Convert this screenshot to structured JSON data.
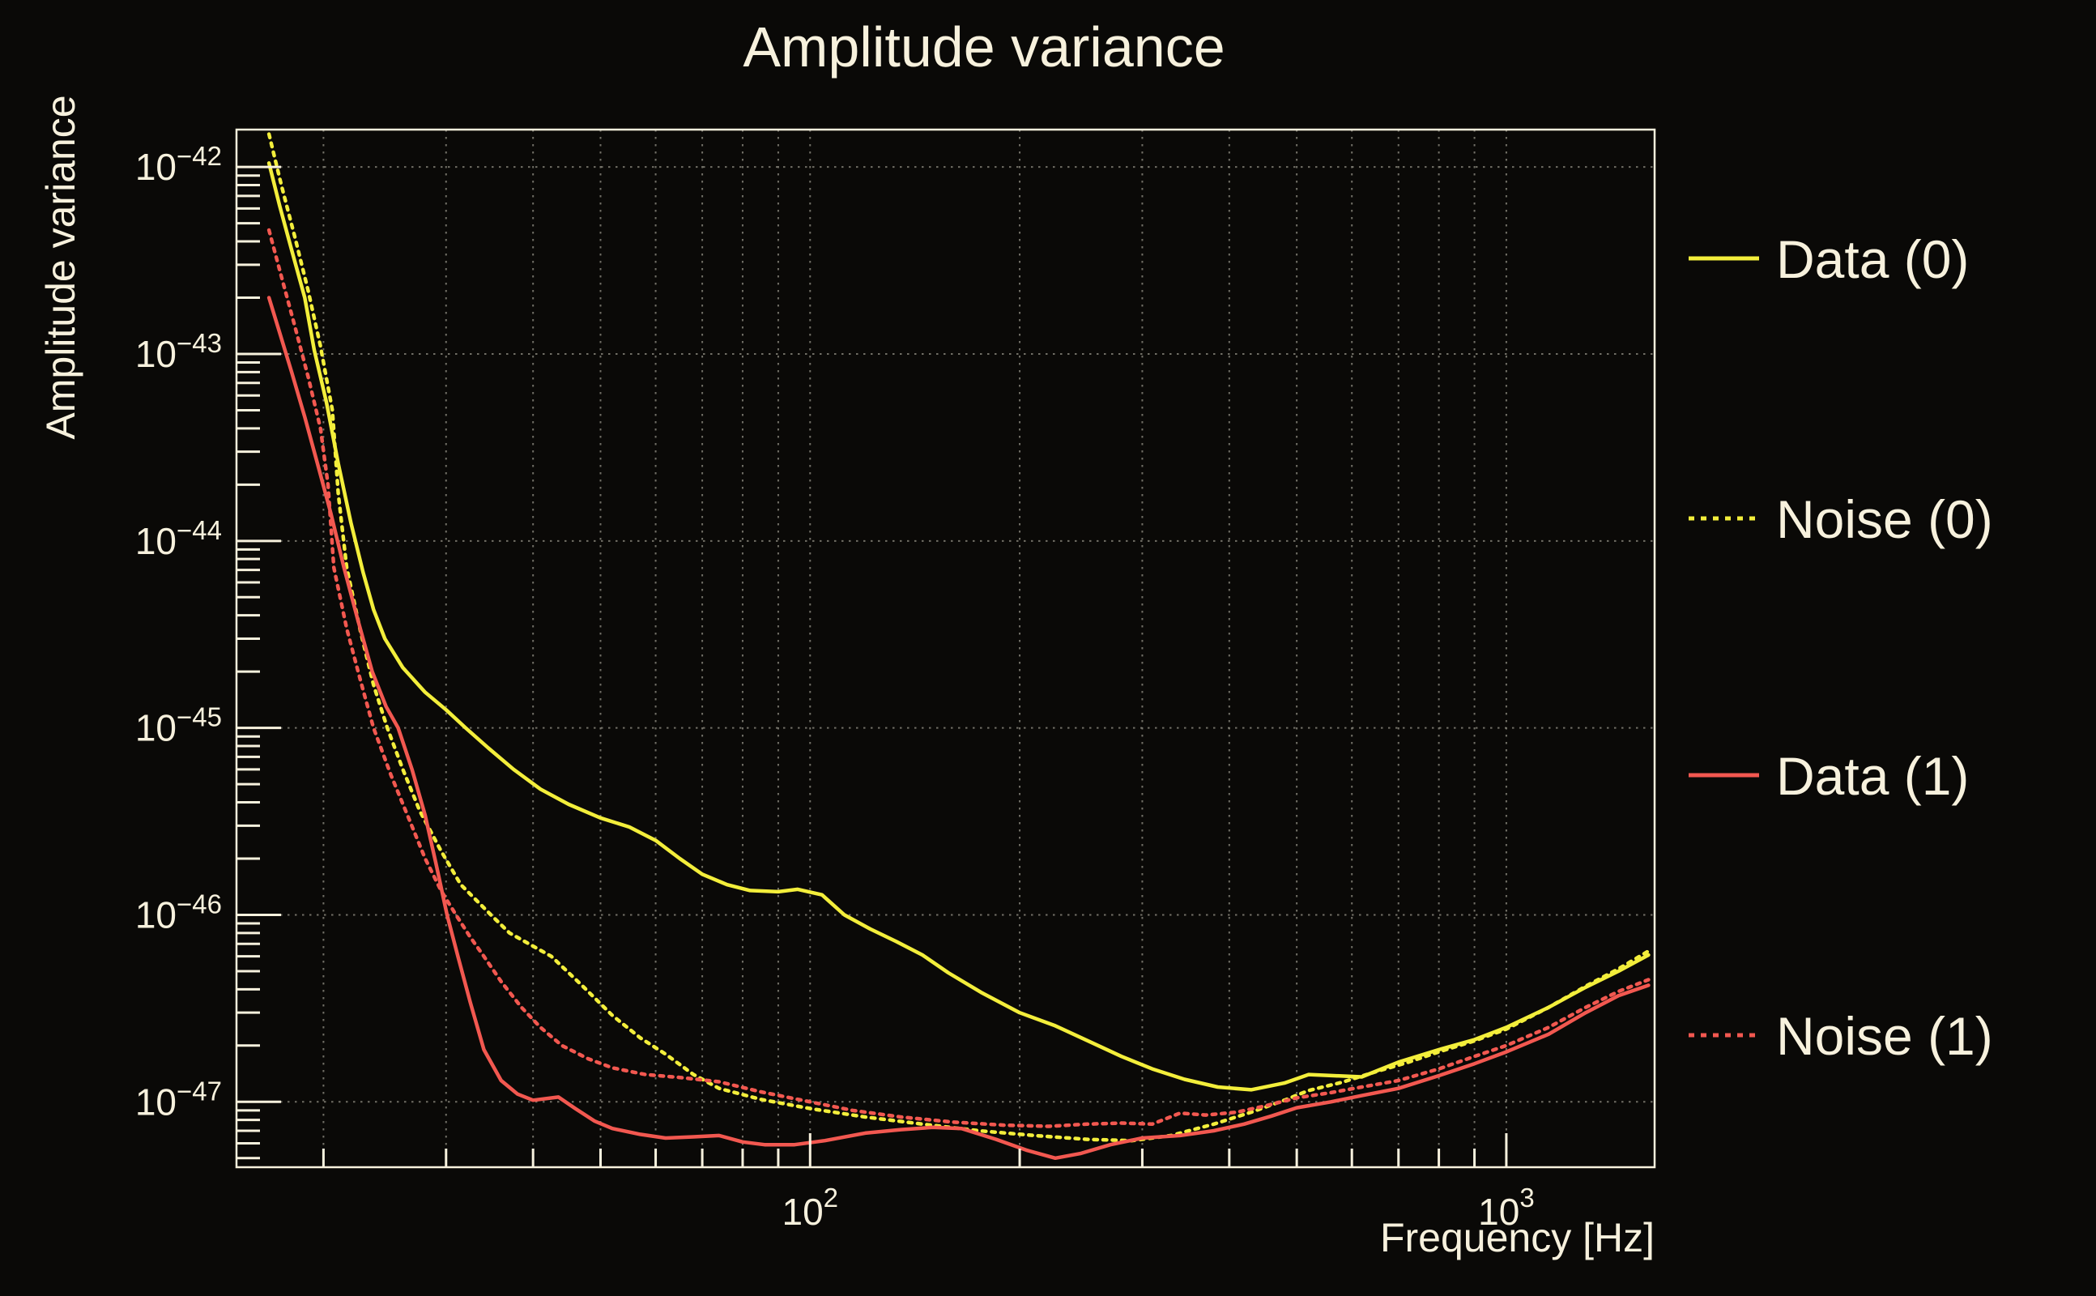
{
  "colors": {
    "background": "#0a0907",
    "foreground": "#f7f1dd",
    "grid": "#8b897e",
    "yellow": "#f3ee3b",
    "red": "#f25850"
  },
  "chart_data": {
    "type": "line",
    "title": "Amplitude variance",
    "xlabel": "Frequency [Hz]",
    "ylabel": "Amplitude variance",
    "x_scale": "log",
    "y_scale": "log",
    "xlim": [
      15.0,
      1633
    ],
    "ylim": [
      4.47e-48,
      1.585e-42
    ],
    "grid": "dotted gray lines at log decades (y) and log minor/major positions up to 1000 Hz (x)",
    "legend_position": "right-outside",
    "x_tick_labels": [
      {
        "value": 100,
        "base": "10",
        "exponent": "2"
      },
      {
        "value": 1000,
        "base": "10",
        "exponent": "3"
      }
    ],
    "y_tick_labels": [
      {
        "value": 1e-42,
        "base": "10",
        "exponent": "−42"
      },
      {
        "value": 1e-43,
        "base": "10",
        "exponent": "−43"
      },
      {
        "value": 1e-44,
        "base": "10",
        "exponent": "−44"
      },
      {
        "value": 1e-45,
        "base": "10",
        "exponent": "−45"
      },
      {
        "value": 1e-46,
        "base": "10",
        "exponent": "−46"
      },
      {
        "value": 1e-47,
        "base": "10",
        "exponent": "−47"
      }
    ],
    "series": [
      {
        "name": "Data (0)",
        "color": "#f3ee3b",
        "style": "solid",
        "points": [
          [
            16.7,
            1.05e-42
          ],
          [
            17.3,
            6.2e-43
          ],
          [
            18,
            3.6e-43
          ],
          [
            18.8,
            2e-43
          ],
          [
            19.4,
            1.05e-43
          ],
          [
            20.2,
            5.5e-44
          ],
          [
            21,
            2.6e-44
          ],
          [
            21.9,
            1.25e-44
          ],
          [
            22.8,
            6.8e-45
          ],
          [
            23.6,
            4.3e-45
          ],
          [
            24.5,
            3e-45
          ],
          [
            26,
            2.1e-45
          ],
          [
            28,
            1.55e-45
          ],
          [
            30,
            1.25e-45
          ],
          [
            32,
            1e-45
          ],
          [
            34.5,
            7.8e-46
          ],
          [
            37.5,
            6e-46
          ],
          [
            41,
            4.7e-46
          ],
          [
            45,
            3.9e-46
          ],
          [
            50,
            3.3e-46
          ],
          [
            55,
            2.95e-46
          ],
          [
            60,
            2.5e-46
          ],
          [
            65,
            2e-46
          ],
          [
            70,
            1.65e-46
          ],
          [
            76,
            1.45e-46
          ],
          [
            82,
            1.35e-46
          ],
          [
            90,
            1.33e-46
          ],
          [
            96,
            1.37e-46
          ],
          [
            104,
            1.28e-46
          ],
          [
            112,
            1e-46
          ],
          [
            122,
            8.4e-47
          ],
          [
            133,
            7.2e-47
          ],
          [
            145,
            6.1e-47
          ],
          [
            158,
            4.9e-47
          ],
          [
            176,
            3.85e-47
          ],
          [
            200,
            3e-47
          ],
          [
            225,
            2.55e-47
          ],
          [
            252,
            2.1e-47
          ],
          [
            280,
            1.75e-47
          ],
          [
            310,
            1.5e-47
          ],
          [
            345,
            1.32e-47
          ],
          [
            385,
            1.2e-47
          ],
          [
            430,
            1.16e-47
          ],
          [
            480,
            1.26e-47
          ],
          [
            520,
            1.4e-47
          ],
          [
            565,
            1.38e-47
          ],
          [
            620,
            1.36e-47
          ],
          [
            700,
            1.63e-47
          ],
          [
            800,
            1.9e-47
          ],
          [
            900,
            2.15e-47
          ],
          [
            1000,
            2.5e-47
          ],
          [
            1150,
            3.2e-47
          ],
          [
            1300,
            4.1e-47
          ],
          [
            1450,
            5e-47
          ],
          [
            1600,
            6.1e-47
          ]
        ]
      },
      {
        "name": "Noise (0)",
        "color": "#f3ee3b",
        "style": "dotted",
        "points": [
          [
            16.7,
            1.5e-42
          ],
          [
            17.4,
            8e-43
          ],
          [
            18.2,
            4.2e-43
          ],
          [
            19,
            2.2e-43
          ],
          [
            19.8,
            1.1e-43
          ],
          [
            20.6,
            5e-44
          ],
          [
            21.0,
            1.8e-44
          ],
          [
            21.6,
            7.2e-45
          ],
          [
            22.6,
            3.3e-45
          ],
          [
            23.6,
            1.7e-45
          ],
          [
            24.7,
            1e-45
          ],
          [
            26,
            6e-46
          ],
          [
            27.5,
            3.6e-46
          ],
          [
            29.5,
            2.2e-46
          ],
          [
            31.5,
            1.45e-46
          ],
          [
            34.8,
            1e-46
          ],
          [
            37,
            8e-47
          ],
          [
            40,
            6.8e-47
          ],
          [
            42.5,
            6e-47
          ],
          [
            47,
            4.2e-47
          ],
          [
            52,
            2.9e-47
          ],
          [
            57,
            2.2e-47
          ],
          [
            62,
            1.8e-47
          ],
          [
            68,
            1.4e-47
          ],
          [
            74,
            1.18e-47
          ],
          [
            85,
            1.03e-47
          ],
          [
            100,
            9.2e-48
          ],
          [
            120,
            8.3e-48
          ],
          [
            145,
            7.6e-48
          ],
          [
            175,
            7e-48
          ],
          [
            210,
            6.6e-48
          ],
          [
            250,
            6.3e-48
          ],
          [
            290,
            6.2e-48
          ],
          [
            330,
            6.6e-48
          ],
          [
            380,
            7.6e-48
          ],
          [
            430,
            8.8e-48
          ],
          [
            480,
            1.02e-47
          ],
          [
            520,
            1.15e-47
          ],
          [
            580,
            1.27e-47
          ],
          [
            650,
            1.45e-47
          ],
          [
            720,
            1.62e-47
          ],
          [
            800,
            1.85e-47
          ],
          [
            900,
            2.12e-47
          ],
          [
            1000,
            2.45e-47
          ],
          [
            1150,
            3.2e-47
          ],
          [
            1300,
            4.15e-47
          ],
          [
            1450,
            5.15e-47
          ],
          [
            1600,
            6.4e-47
          ]
        ]
      },
      {
        "name": "Data (1)",
        "color": "#f25850",
        "style": "solid",
        "points": [
          [
            16.7,
            2e-43
          ],
          [
            17.3,
            1.3e-43
          ],
          [
            18,
            8e-44
          ],
          [
            18.8,
            4.6e-44
          ],
          [
            19.6,
            2.6e-44
          ],
          [
            20.5,
            1.4e-44
          ],
          [
            21.4,
            7.2e-45
          ],
          [
            22.4,
            3.8e-45
          ],
          [
            23.5,
            2e-45
          ],
          [
            24.6,
            1.3e-45
          ],
          [
            25.6,
            1e-45
          ],
          [
            26.8,
            6e-46
          ],
          [
            28,
            3.4e-46
          ],
          [
            29,
            1.9e-46
          ],
          [
            30.1,
            1e-46
          ],
          [
            31.2,
            6e-47
          ],
          [
            32.5,
            3.4e-47
          ],
          [
            34,
            1.9e-47
          ],
          [
            36,
            1.3e-47
          ],
          [
            38,
            1.1e-47
          ],
          [
            40,
            1.02e-47
          ],
          [
            43.5,
            1.06e-47
          ],
          [
            46,
            9.2e-48
          ],
          [
            49,
            7.9e-48
          ],
          [
            52,
            7.2e-48
          ],
          [
            57,
            6.7e-48
          ],
          [
            62,
            6.4e-48
          ],
          [
            68,
            6.5e-48
          ],
          [
            74,
            6.6e-48
          ],
          [
            80,
            6.1e-48
          ],
          [
            86,
            5.9e-48
          ],
          [
            95,
            5.9e-48
          ],
          [
            105,
            6.2e-48
          ],
          [
            120,
            6.8e-48
          ],
          [
            135,
            7.1e-48
          ],
          [
            150,
            7.3e-48
          ],
          [
            165,
            7.2e-48
          ],
          [
            185,
            6.3e-48
          ],
          [
            205,
            5.5e-48
          ],
          [
            225,
            5e-48
          ],
          [
            245,
            5.3e-48
          ],
          [
            270,
            5.9e-48
          ],
          [
            300,
            6.4e-48
          ],
          [
            340,
            6.6e-48
          ],
          [
            380,
            7e-48
          ],
          [
            420,
            7.6e-48
          ],
          [
            460,
            8.4e-48
          ],
          [
            500,
            9.3e-48
          ],
          [
            560,
            1e-47
          ],
          [
            620,
            1.08e-47
          ],
          [
            700,
            1.18e-47
          ],
          [
            800,
            1.38e-47
          ],
          [
            900,
            1.6e-47
          ],
          [
            1000,
            1.85e-47
          ],
          [
            1150,
            2.3e-47
          ],
          [
            1300,
            3e-47
          ],
          [
            1450,
            3.7e-47
          ],
          [
            1600,
            4.2e-47
          ]
        ]
      },
      {
        "name": "Noise (1)",
        "color": "#f25850",
        "style": "dotted",
        "points": [
          [
            16.7,
            4.6e-43
          ],
          [
            17.4,
            2.6e-43
          ],
          [
            18.2,
            1.4e-43
          ],
          [
            19,
            7.6e-44
          ],
          [
            19.8,
            4e-44
          ],
          [
            20.3,
            2e-44
          ],
          [
            20.7,
            7.2e-45
          ],
          [
            21.6,
            3.4e-45
          ],
          [
            22.6,
            1.8e-45
          ],
          [
            23.6,
            1e-45
          ],
          [
            25,
            5.6e-46
          ],
          [
            26.5,
            3.3e-46
          ],
          [
            28,
            2e-46
          ],
          [
            29.5,
            1.35e-46
          ],
          [
            31,
            1e-46
          ],
          [
            32.5,
            7.6e-47
          ],
          [
            34,
            6e-47
          ],
          [
            36,
            4.4e-47
          ],
          [
            38.5,
            3.2e-47
          ],
          [
            41,
            2.5e-47
          ],
          [
            44,
            2e-47
          ],
          [
            48,
            1.7e-47
          ],
          [
            52,
            1.52e-47
          ],
          [
            58,
            1.4e-47
          ],
          [
            65,
            1.35e-47
          ],
          [
            74,
            1.28e-47
          ],
          [
            85,
            1.13e-47
          ],
          [
            100,
            1e-47
          ],
          [
            115,
            9e-48
          ],
          [
            135,
            8.3e-48
          ],
          [
            160,
            7.8e-48
          ],
          [
            190,
            7.5e-48
          ],
          [
            220,
            7.4e-48
          ],
          [
            250,
            7.6e-48
          ],
          [
            280,
            7.7e-48
          ],
          [
            310,
            7.6e-48
          ],
          [
            340,
            8.7e-48
          ],
          [
            370,
            8.5e-48
          ],
          [
            410,
            8.8e-48
          ],
          [
            450,
            9.5e-48
          ],
          [
            500,
            1.05e-47
          ],
          [
            560,
            1.12e-47
          ],
          [
            620,
            1.2e-47
          ],
          [
            700,
            1.3e-47
          ],
          [
            800,
            1.5e-47
          ],
          [
            900,
            1.75e-47
          ],
          [
            1000,
            2e-47
          ],
          [
            1150,
            2.5e-47
          ],
          [
            1300,
            3.2e-47
          ],
          [
            1450,
            3.9e-47
          ],
          [
            1600,
            4.5e-47
          ]
        ]
      }
    ],
    "legend_entries": [
      "Data (0)",
      "Noise (0)",
      "Data (1)",
      "Noise (1)"
    ]
  }
}
